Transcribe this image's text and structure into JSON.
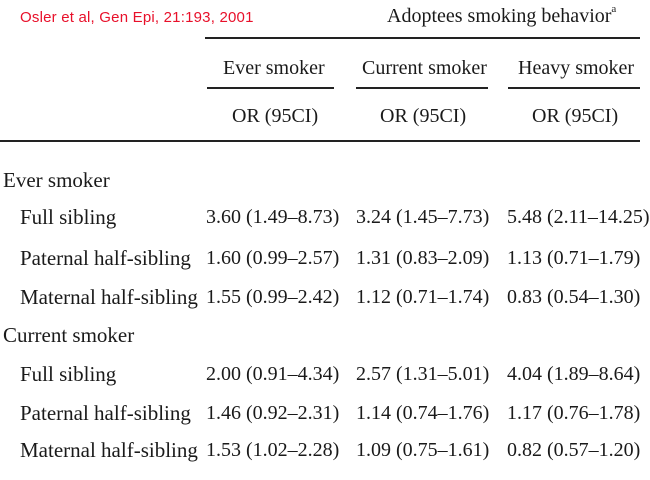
{
  "citation": "Osler et al, Gen Epi, 21:193, 2001",
  "header": {
    "group": "Adoptees smoking behavior",
    "group_note": "a",
    "columns": [
      "Ever smoker",
      "Current smoker",
      "Heavy smoker"
    ],
    "subheader": [
      "OR (95CI)",
      "OR (95CI)",
      "OR (95CI)"
    ]
  },
  "sections": [
    {
      "title": "Ever smoker",
      "rows": [
        {
          "label": "Full sibling",
          "values": [
            "3.60 (1.49–8.73)",
            "3.24 (1.45–7.73)",
            "5.48 (2.11–14.25)"
          ]
        },
        {
          "label": "Paternal half-sibling",
          "values": [
            "1.60 (0.99–2.57)",
            "1.31 (0.83–2.09)",
            "1.13 (0.71–1.79)"
          ]
        },
        {
          "label": "Maternal half-sibling",
          "values": [
            "1.55 (0.99–2.42)",
            "1.12 (0.71–1.74)",
            "0.83 (0.54–1.30)"
          ]
        }
      ]
    },
    {
      "title": "Current smoker",
      "rows": [
        {
          "label": "Full sibling",
          "values": [
            "2.00 (0.91–4.34)",
            "2.57 (1.31–5.01)",
            "4.04 (1.89–8.64)"
          ]
        },
        {
          "label": "Paternal half-sibling",
          "values": [
            "1.46 (0.92–2.31)",
            "1.14 (0.74–1.76)",
            "1.17 (0.76–1.78)"
          ]
        },
        {
          "label": "Maternal half-sibling",
          "values": [
            "1.53 (1.02–2.28)",
            "1.09 (0.75–1.61)",
            "0.82 (0.57–1.20)"
          ]
        }
      ]
    }
  ],
  "colors": {
    "citation": "#e8102a",
    "text": "#1a1a1a",
    "rule": "#222222"
  }
}
